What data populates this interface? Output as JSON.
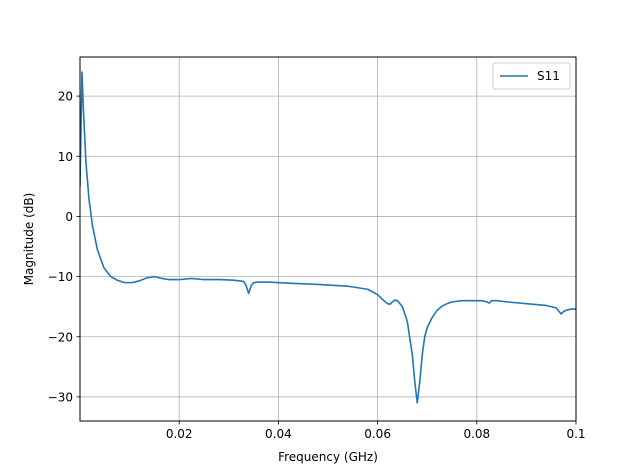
{
  "chart_data": {
    "type": "line",
    "xlabel": "Frequency (GHz)",
    "ylabel": "Magnitude (dB)",
    "xlim": [
      0.0,
      0.1
    ],
    "ylim": [
      -34,
      26.5
    ],
    "xticks": [
      0.02,
      0.04,
      0.06,
      0.08,
      0.1
    ],
    "xtick_labels": [
      "0.02",
      "0.04",
      "0.06",
      "0.08",
      "0.1"
    ],
    "yticks": [
      -30,
      -20,
      -10,
      0,
      10,
      20
    ],
    "ytick_labels": [
      "−30",
      "−20",
      "−10",
      "0",
      "10",
      "20"
    ],
    "grid": true,
    "legend": {
      "placement": "top-right",
      "entries": [
        "S11"
      ]
    },
    "colors": {
      "S11": "#1f77b4",
      "grid": "#b0b0b0",
      "axes": "#000000"
    },
    "series": [
      {
        "name": "S11",
        "x": [
          0.0,
          0.0004,
          0.0007,
          0.0012,
          0.0018,
          0.0025,
          0.0035,
          0.0048,
          0.0062,
          0.0075,
          0.009,
          0.0105,
          0.012,
          0.0135,
          0.015,
          0.0165,
          0.018,
          0.02,
          0.0225,
          0.025,
          0.028,
          0.031,
          0.033,
          0.0335,
          0.034,
          0.0345,
          0.035,
          0.036,
          0.038,
          0.042,
          0.048,
          0.054,
          0.058,
          0.06,
          0.061,
          0.062,
          0.0625,
          0.063,
          0.0635,
          0.064,
          0.065,
          0.066,
          0.067,
          0.0675,
          0.068,
          0.0685,
          0.069,
          0.0695,
          0.07,
          0.071,
          0.072,
          0.073,
          0.074,
          0.075,
          0.077,
          0.079,
          0.081,
          0.082,
          0.0825,
          0.083,
          0.084,
          0.086,
          0.09,
          0.094,
          0.096,
          0.0965,
          0.097,
          0.0975,
          0.098,
          0.099,
          0.1
        ],
        "y": [
          5.0,
          24.0,
          17.5,
          9.0,
          3.0,
          -1.5,
          -5.5,
          -8.5,
          -10.0,
          -10.6,
          -11.0,
          -11.0,
          -10.7,
          -10.2,
          -10.0,
          -10.3,
          -10.5,
          -10.5,
          -10.3,
          -10.5,
          -10.5,
          -10.6,
          -10.8,
          -11.5,
          -12.8,
          -11.5,
          -11.0,
          -10.9,
          -10.9,
          -11.1,
          -11.3,
          -11.6,
          -12.1,
          -13.0,
          -13.8,
          -14.5,
          -14.6,
          -14.2,
          -13.9,
          -14.0,
          -15.0,
          -17.5,
          -23.0,
          -27.5,
          -31.0,
          -27.5,
          -23.0,
          -20.0,
          -18.5,
          -16.8,
          -15.6,
          -14.9,
          -14.5,
          -14.2,
          -14.0,
          -14.0,
          -14.0,
          -14.2,
          -14.4,
          -14.0,
          -14.0,
          -14.2,
          -14.5,
          -14.8,
          -15.2,
          -15.7,
          -16.2,
          -15.8,
          -15.6,
          -15.4,
          -15.4
        ]
      }
    ]
  }
}
